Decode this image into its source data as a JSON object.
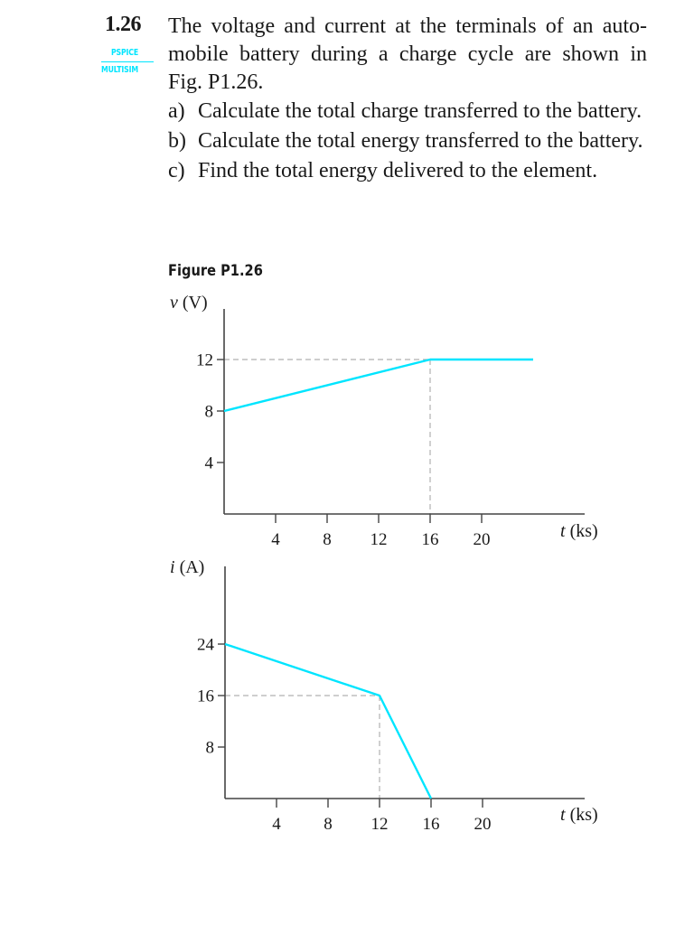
{
  "problem": {
    "number": "1.26",
    "tags": [
      "PSPICE",
      "MULTISIM"
    ],
    "stem_lines": [
      "The voltage and current at the terminals of an auto-",
      "mobile battery during a charge cycle are shown in",
      "Fig. P1.26."
    ],
    "parts": [
      {
        "label": "a)",
        "text": "Calculate the total charge transferred to the battery."
      },
      {
        "label": "b)",
        "text": "Calculate the total energy transferred to the battery."
      },
      {
        "label": "c)",
        "text": "Find the total energy delivered to the element."
      }
    ]
  },
  "figure": {
    "title": "Figure P1.26",
    "accent_color": "#00e5ff",
    "guide_color": "#b0b0b0"
  },
  "chart_data": [
    {
      "type": "line",
      "title": "",
      "ylabel_var": "v",
      "ylabel_unit": "(V)",
      "xlabel_var": "t",
      "xlabel_unit": "(ks)",
      "x": [
        0,
        16,
        24
      ],
      "values": [
        8,
        12,
        12
      ],
      "xticks": [
        4,
        8,
        12,
        16,
        20
      ],
      "yticks": [
        4,
        8,
        12
      ],
      "xlim": [
        0,
        28
      ],
      "ylim": [
        0,
        16
      ],
      "guides": [
        {
          "x": 16,
          "y": 12
        }
      ],
      "grid": false
    },
    {
      "type": "line",
      "title": "",
      "ylabel_var": "i",
      "ylabel_unit": "(A)",
      "xlabel_var": "t",
      "xlabel_unit": "(ks)",
      "x": [
        0,
        12,
        16
      ],
      "values": [
        24,
        16,
        0
      ],
      "xticks": [
        4,
        8,
        12,
        16,
        20
      ],
      "yticks": [
        8,
        16,
        24
      ],
      "xlim": [
        0,
        28
      ],
      "ylim": [
        0,
        36
      ],
      "guides": [
        {
          "x": 12,
          "y": 16
        }
      ],
      "grid": false
    }
  ]
}
